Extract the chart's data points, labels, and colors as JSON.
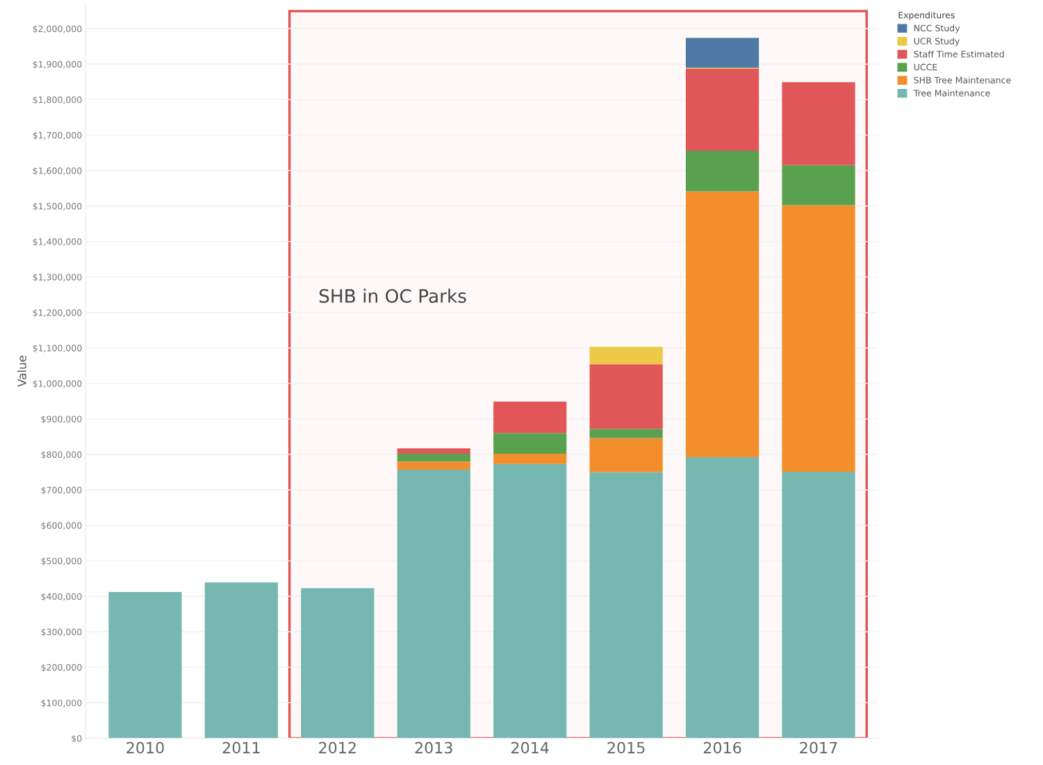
{
  "chart_data": {
    "type": "bar",
    "stacked": true,
    "ylabel": "Value",
    "legend_title": "Expenditures",
    "legend": "top right",
    "grid": "y",
    "categories": [
      "2010",
      "2011",
      "2012",
      "2013",
      "2014",
      "2015",
      "2016",
      "2017"
    ],
    "series": [
      {
        "name": "Tree Maintenance",
        "color": "#76b7b2",
        "values": [
          412000,
          439000,
          423000,
          757000,
          773000,
          750000,
          792000,
          751000
        ]
      },
      {
        "name": "SHB Tree Maintenance",
        "color": "#f28e2b",
        "values": [
          null,
          null,
          null,
          23000,
          29000,
          96000,
          749000,
          751000
        ]
      },
      {
        "name": "UCCE",
        "color": "#59a14f",
        "values": [
          null,
          null,
          null,
          22000,
          58000,
          26000,
          115000,
          113000
        ]
      },
      {
        "name": "Staff Time Estimated",
        "color": "#e15759",
        "values": [
          null,
          null,
          null,
          15000,
          89000,
          182000,
          231000,
          234000
        ]
      },
      {
        "name": "UCR Study",
        "color": "#edc948",
        "values": [
          null,
          null,
          null,
          null,
          null,
          49000,
          3000,
          null
        ]
      },
      {
        "name": "NCC Study",
        "color": "#4e79a7",
        "values": [
          null,
          null,
          null,
          null,
          null,
          null,
          84000,
          null
        ]
      }
    ],
    "ylim": [
      0,
      2070000
    ],
    "yticks": [
      {
        "value": 0,
        "label": "$0"
      },
      {
        "value": 100000,
        "label": "$100,000"
      },
      {
        "value": 200000,
        "label": "$200,000"
      },
      {
        "value": 300000,
        "label": "$300,000"
      },
      {
        "value": 400000,
        "label": "$400,000"
      },
      {
        "value": 500000,
        "label": "$500,000"
      },
      {
        "value": 600000,
        "label": "$600,000"
      },
      {
        "value": 700000,
        "label": "$700,000"
      },
      {
        "value": 800000,
        "label": "$800,000"
      },
      {
        "value": 900000,
        "label": "$900,000"
      },
      {
        "value": 1000000,
        "label": "$1,000,000"
      },
      {
        "value": 1100000,
        "label": "$1,100,000"
      },
      {
        "value": 1200000,
        "label": "$1,200,000"
      },
      {
        "value": 1300000,
        "label": "$1,300,000"
      },
      {
        "value": 1400000,
        "label": "$1,400,000"
      },
      {
        "value": 1500000,
        "label": "$1,500,000"
      },
      {
        "value": 1600000,
        "label": "$1,600,000"
      },
      {
        "value": 1700000,
        "label": "$1,700,000"
      },
      {
        "value": 1800000,
        "label": "$1,800,000"
      },
      {
        "value": 1900000,
        "label": "$1,900,000"
      },
      {
        "value": 2000000,
        "label": "$2,000,000"
      }
    ],
    "bands": [
      {
        "axis": "x",
        "from": "2012",
        "to": "2017",
        "label": "SHB in OC Parks",
        "color": "#e05759"
      }
    ]
  }
}
